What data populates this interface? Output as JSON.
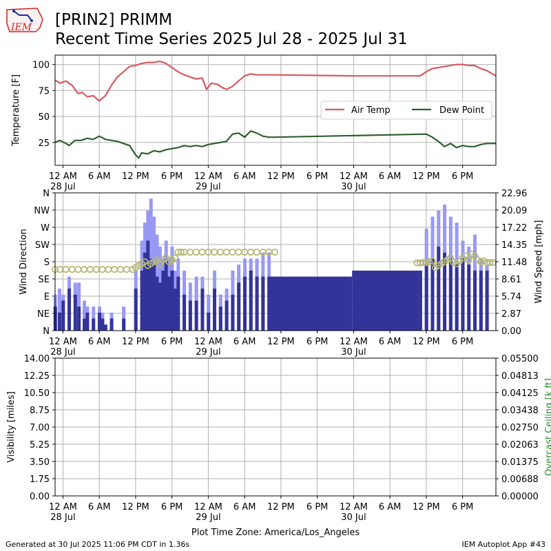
{
  "header": {
    "title_line1": "[PRIN2] PRIMM",
    "title_line2": "Recent Time Series 2025 Jul 28 - 2025 Jul 31",
    "logo_text": "IEM"
  },
  "footer": {
    "left": "Generated at 30 Jul 2025 11:06 PM CDT in 1.36s",
    "right": "IEM Autoplot App #43"
  },
  "colors": {
    "air_temp": "#d9585d",
    "dew_point": "#2e5e2e",
    "wind_gust": "#9999f5",
    "wind_speed": "#33339a",
    "wind_direction": "#b5b876",
    "ceiling_axis": "#2a8a2a",
    "grid": "#b0b0b0"
  },
  "chart_data": [
    {
      "type": "line",
      "name": "temperature",
      "ylabel": "Temperature [F]",
      "ylim": [
        3,
        109
      ],
      "yticks": [
        25,
        50,
        75,
        100
      ],
      "xlim": [
        -1.3,
        71.5
      ],
      "x_unit": "hours since 2025-07-28 12 AM",
      "xtick_labels": [
        {
          "x": 0,
          "l1": "12 AM",
          "l2": "28 Jul"
        },
        {
          "x": 6,
          "l1": "6 AM",
          "l2": ""
        },
        {
          "x": 12,
          "l1": "12 PM",
          "l2": ""
        },
        {
          "x": 18,
          "l1": "6 PM",
          "l2": ""
        },
        {
          "x": 24,
          "l1": "12 AM",
          "l2": "29 Jul"
        },
        {
          "x": 30,
          "l1": "6 AM",
          "l2": ""
        },
        {
          "x": 36,
          "l1": "12 PM",
          "l2": ""
        },
        {
          "x": 42,
          "l1": "6 PM",
          "l2": ""
        },
        {
          "x": 48,
          "l1": "12 AM",
          "l2": "30 Jul"
        },
        {
          "x": 54,
          "l1": "6 AM",
          "l2": ""
        },
        {
          "x": 60,
          "l1": "12 PM",
          "l2": ""
        },
        {
          "x": 66,
          "l1": "6 PM",
          "l2": ""
        }
      ],
      "legend": "right",
      "series": [
        {
          "name": "Air Temp",
          "x": [
            -1.3,
            -0.5,
            0.5,
            1.5,
            2.5,
            3.2,
            4,
            5,
            6,
            7,
            8,
            9,
            10,
            11,
            12,
            13,
            14,
            15,
            16,
            17,
            18,
            19,
            20,
            21,
            22,
            23,
            23.7,
            24.5,
            25.5,
            26.2,
            27,
            28,
            29,
            30,
            31,
            32,
            33,
            34,
            35,
            48,
            59,
            60,
            61,
            62,
            63,
            64,
            65,
            66,
            67,
            68,
            69,
            70,
            71.5
          ],
          "y": [
            85,
            82,
            84,
            80,
            72,
            73,
            69,
            70,
            65,
            70,
            80,
            88,
            93,
            98,
            99,
            101,
            102,
            102,
            103,
            101,
            97,
            93,
            90,
            88,
            86,
            87,
            76,
            82,
            81,
            78,
            76,
            79,
            84,
            89,
            91,
            90,
            90,
            90,
            90,
            89,
            89,
            93,
            96,
            97,
            98,
            99,
            100,
            100,
            99,
            99,
            96,
            94,
            89
          ]
        },
        {
          "name": "Dew Point",
          "x": [
            -1.3,
            -0.5,
            0.5,
            1,
            2,
            3,
            4,
            5,
            6,
            7,
            8,
            9,
            10,
            11,
            12,
            12.5,
            13,
            14,
            15,
            16,
            17,
            18,
            19,
            20,
            21,
            22,
            23,
            24,
            25,
            26,
            27,
            28,
            29,
            30,
            31,
            32,
            33,
            34,
            35,
            60,
            61,
            62,
            63,
            64,
            65,
            66,
            67,
            68,
            69,
            70,
            71.5
          ],
          "y": [
            25,
            27,
            24,
            22,
            27,
            27,
            29,
            28,
            31,
            28,
            27,
            26,
            24,
            22,
            13,
            10,
            15,
            14,
            17,
            16,
            18,
            19,
            20,
            22,
            21,
            22,
            21,
            23,
            24,
            25,
            26,
            33,
            34,
            30,
            36,
            34,
            31,
            30,
            30,
            33,
            30,
            26,
            21,
            24,
            20,
            22,
            21,
            21,
            23,
            24,
            24
          ]
        }
      ]
    },
    {
      "type": "bar",
      "name": "wind",
      "ylabel": "Wind Direction",
      "ylabel_right": "Wind Speed [mph]",
      "direction_ticks": [
        {
          "deg": 0,
          "label": "N"
        },
        {
          "deg": 45,
          "label": "NE"
        },
        {
          "deg": 90,
          "label": "E"
        },
        {
          "deg": 135,
          "label": "SE"
        },
        {
          "deg": 180,
          "label": "S"
        },
        {
          "deg": 225,
          "label": "SW"
        },
        {
          "deg": 270,
          "label": "W"
        },
        {
          "deg": 315,
          "label": "NW"
        },
        {
          "deg": 360,
          "label": "N"
        }
      ],
      "speed_ticks": [
        "0.00",
        "2.87",
        "5.74",
        "8.61",
        "11.48",
        "14.35",
        "17.22",
        "20.09",
        "22.96"
      ],
      "speed_max": 22.96,
      "xlim": [
        -1.3,
        71.5
      ],
      "gust_x": [
        -1.3,
        -0.6,
        0,
        1,
        2,
        2.6,
        3.5,
        4,
        5,
        6,
        6.5,
        7,
        8,
        10,
        12,
        13,
        13.5,
        14,
        14.5,
        15,
        15.5,
        16,
        16.5,
        17,
        17.5,
        18,
        18.5,
        19,
        20,
        21,
        22,
        23,
        24,
        25,
        26,
        27,
        28,
        29,
        30,
        31,
        32,
        33,
        34,
        60,
        61,
        62,
        63,
        64,
        65,
        66,
        67,
        68,
        69,
        70
      ],
      "gust": [
        6,
        7,
        6,
        9,
        8,
        8,
        5,
        4,
        4,
        4,
        3,
        1,
        3,
        4,
        10,
        15,
        18,
        20,
        22,
        19,
        16,
        14,
        12,
        15,
        12,
        14,
        10,
        12,
        10,
        8,
        9,
        9,
        6,
        10,
        6,
        7,
        10,
        11,
        12,
        12,
        12,
        13,
        13,
        17,
        19,
        20,
        21,
        19,
        18,
        15,
        14,
        16,
        12,
        11
      ],
      "speed_x": [
        -1.3,
        -0.6,
        0,
        1,
        2,
        2.6,
        3.5,
        4,
        5,
        6,
        6.5,
        7,
        8,
        10,
        12,
        13,
        13.5,
        14,
        14.5,
        15,
        15.5,
        16,
        16.5,
        17,
        17.5,
        18,
        18.5,
        19,
        20,
        21,
        22,
        23,
        24,
        25,
        26,
        27,
        28,
        29,
        30,
        31,
        32,
        33,
        34,
        48,
        59,
        60,
        61,
        62,
        63,
        64,
        65,
        66,
        67,
        68,
        69,
        70
      ],
      "speed": [
        4,
        3,
        5,
        7,
        6,
        4,
        2,
        3,
        2,
        3,
        2,
        1,
        2,
        2,
        7,
        10,
        13,
        15,
        12,
        11,
        9,
        8,
        10,
        12,
        9,
        10,
        7,
        9,
        6,
        5,
        5,
        7,
        3,
        7,
        4,
        5,
        6,
        8,
        9,
        10,
        9,
        9,
        9,
        10,
        10,
        11,
        12,
        14,
        13,
        12,
        11,
        12,
        11,
        10,
        10,
        10
      ],
      "dir_x": [
        -1.3,
        -0.5,
        0.5,
        1.5,
        2.5,
        3.5,
        4.5,
        5.5,
        6.5,
        7.5,
        8.5,
        9.5,
        10.5,
        11.5,
        12,
        12.5,
        13,
        13.5,
        14,
        14.5,
        15,
        15.5,
        16,
        16.5,
        17,
        17.5,
        18,
        18.5,
        19,
        19.5,
        20,
        21,
        22,
        23,
        24,
        25,
        26,
        27,
        28,
        29,
        30,
        31,
        32,
        33,
        34,
        35,
        58.5,
        59,
        59.5,
        60,
        60.5,
        61,
        61.5,
        62,
        62.5,
        63,
        63.5,
        64,
        64.5,
        65,
        65.5,
        66,
        66.5,
        67,
        67.5,
        68,
        68.5,
        69,
        69.5,
        70,
        70.5,
        71
      ],
      "dir": [
        160,
        160,
        160,
        160,
        160,
        160,
        160,
        160,
        160,
        160,
        160,
        160,
        160,
        160,
        165,
        170,
        175,
        180,
        170,
        175,
        180,
        185,
        175,
        185,
        190,
        180,
        185,
        190,
        205,
        205,
        205,
        205,
        205,
        205,
        205,
        205,
        205,
        205,
        205,
        205,
        205,
        205,
        205,
        205,
        205,
        205,
        177,
        177,
        178,
        178,
        180,
        182,
        165,
        170,
        175,
        180,
        185,
        190,
        178,
        175,
        182,
        190,
        195,
        185,
        200,
        195,
        185,
        180,
        182,
        178,
        178,
        178
      ]
    },
    {
      "type": "line",
      "name": "visibility",
      "ylabel": "Visibility [miles]",
      "ylabel_right": "Overcast Ceiling [k ft]",
      "yticks": [
        "0.00",
        "1.75",
        "3.50",
        "5.25",
        "7.00",
        "8.75",
        "10.50",
        "12.25",
        "14.00"
      ],
      "yticks_right": [
        "0.00000",
        "0.00688",
        "0.01375",
        "0.02063",
        "0.02750",
        "0.03438",
        "0.04125",
        "0.04813",
        "0.05500"
      ],
      "xlim": [
        -1.3,
        71.5
      ],
      "xlabel": "Plot Time Zone: America/Los_Angeles",
      "series": []
    }
  ]
}
